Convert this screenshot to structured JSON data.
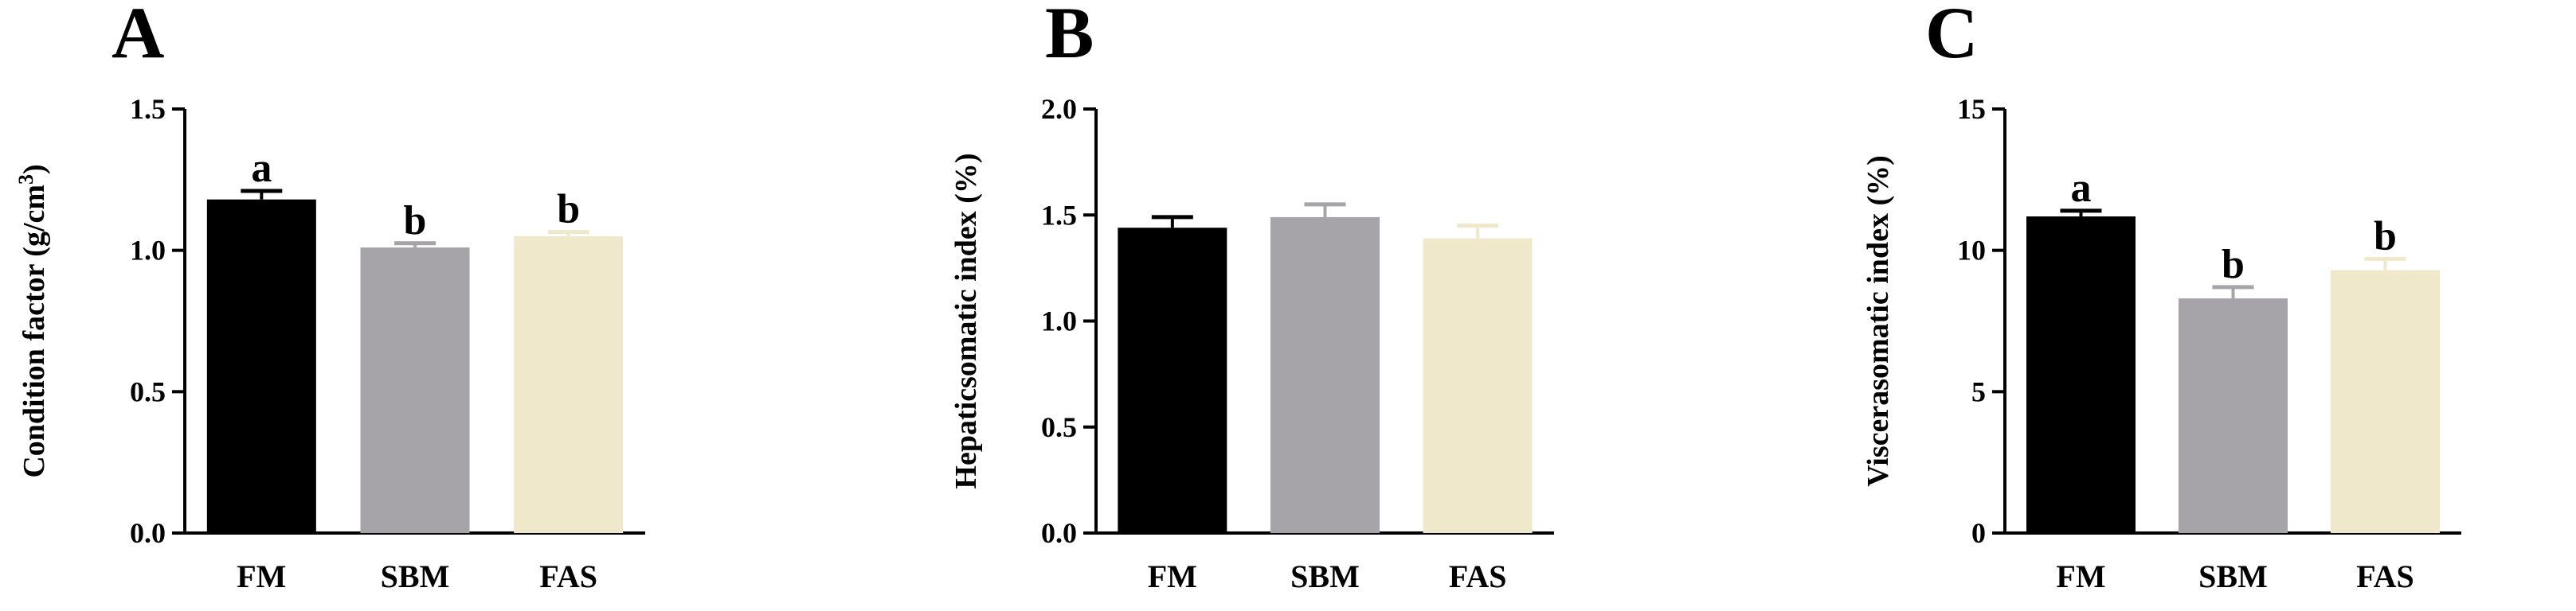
{
  "colors": {
    "FM": "#000000",
    "SBM": "#a6a4a9",
    "FAS": "#efe8cb",
    "axis": "#000000"
  },
  "chart_data": [
    {
      "type": "bar",
      "panel": "A",
      "categories": [
        "FM",
        "SBM",
        "FAS"
      ],
      "values": [
        1.18,
        1.01,
        1.05
      ],
      "errors": [
        0.03,
        0.015,
        0.015
      ],
      "significance": [
        "a",
        "b",
        "b"
      ],
      "ylabel_main": "Condition factor (g/cm",
      "ylabel_sup": "3",
      "ylabel_end": ")",
      "ylim": [
        0,
        1.5
      ],
      "yticks": [
        "0.0",
        "0.5",
        "1.0",
        "1.5"
      ]
    },
    {
      "type": "bar",
      "panel": "B",
      "categories": [
        "FM",
        "SBM",
        "FAS"
      ],
      "values": [
        1.44,
        1.49,
        1.39
      ],
      "errors": [
        0.05,
        0.06,
        0.06
      ],
      "significance": [
        "",
        "",
        ""
      ],
      "ylabel_main": "Hepaticsomatic index (%)",
      "ylabel_sup": "",
      "ylabel_end": "",
      "ylim": [
        0,
        2.0
      ],
      "yticks": [
        "0.0",
        "0.5",
        "1.0",
        "1.5",
        "2.0"
      ]
    },
    {
      "type": "bar",
      "panel": "C",
      "categories": [
        "FM",
        "SBM",
        "FAS"
      ],
      "values": [
        11.2,
        8.3,
        9.3
      ],
      "errors": [
        0.2,
        0.4,
        0.4
      ],
      "significance": [
        "a",
        "b",
        "b"
      ],
      "ylabel_main": "Viscerasomatic index (%)",
      "ylabel_sup": "",
      "ylabel_end": "",
      "ylim": [
        0,
        15
      ],
      "yticks": [
        "0",
        "5",
        "10",
        "15"
      ]
    }
  ]
}
